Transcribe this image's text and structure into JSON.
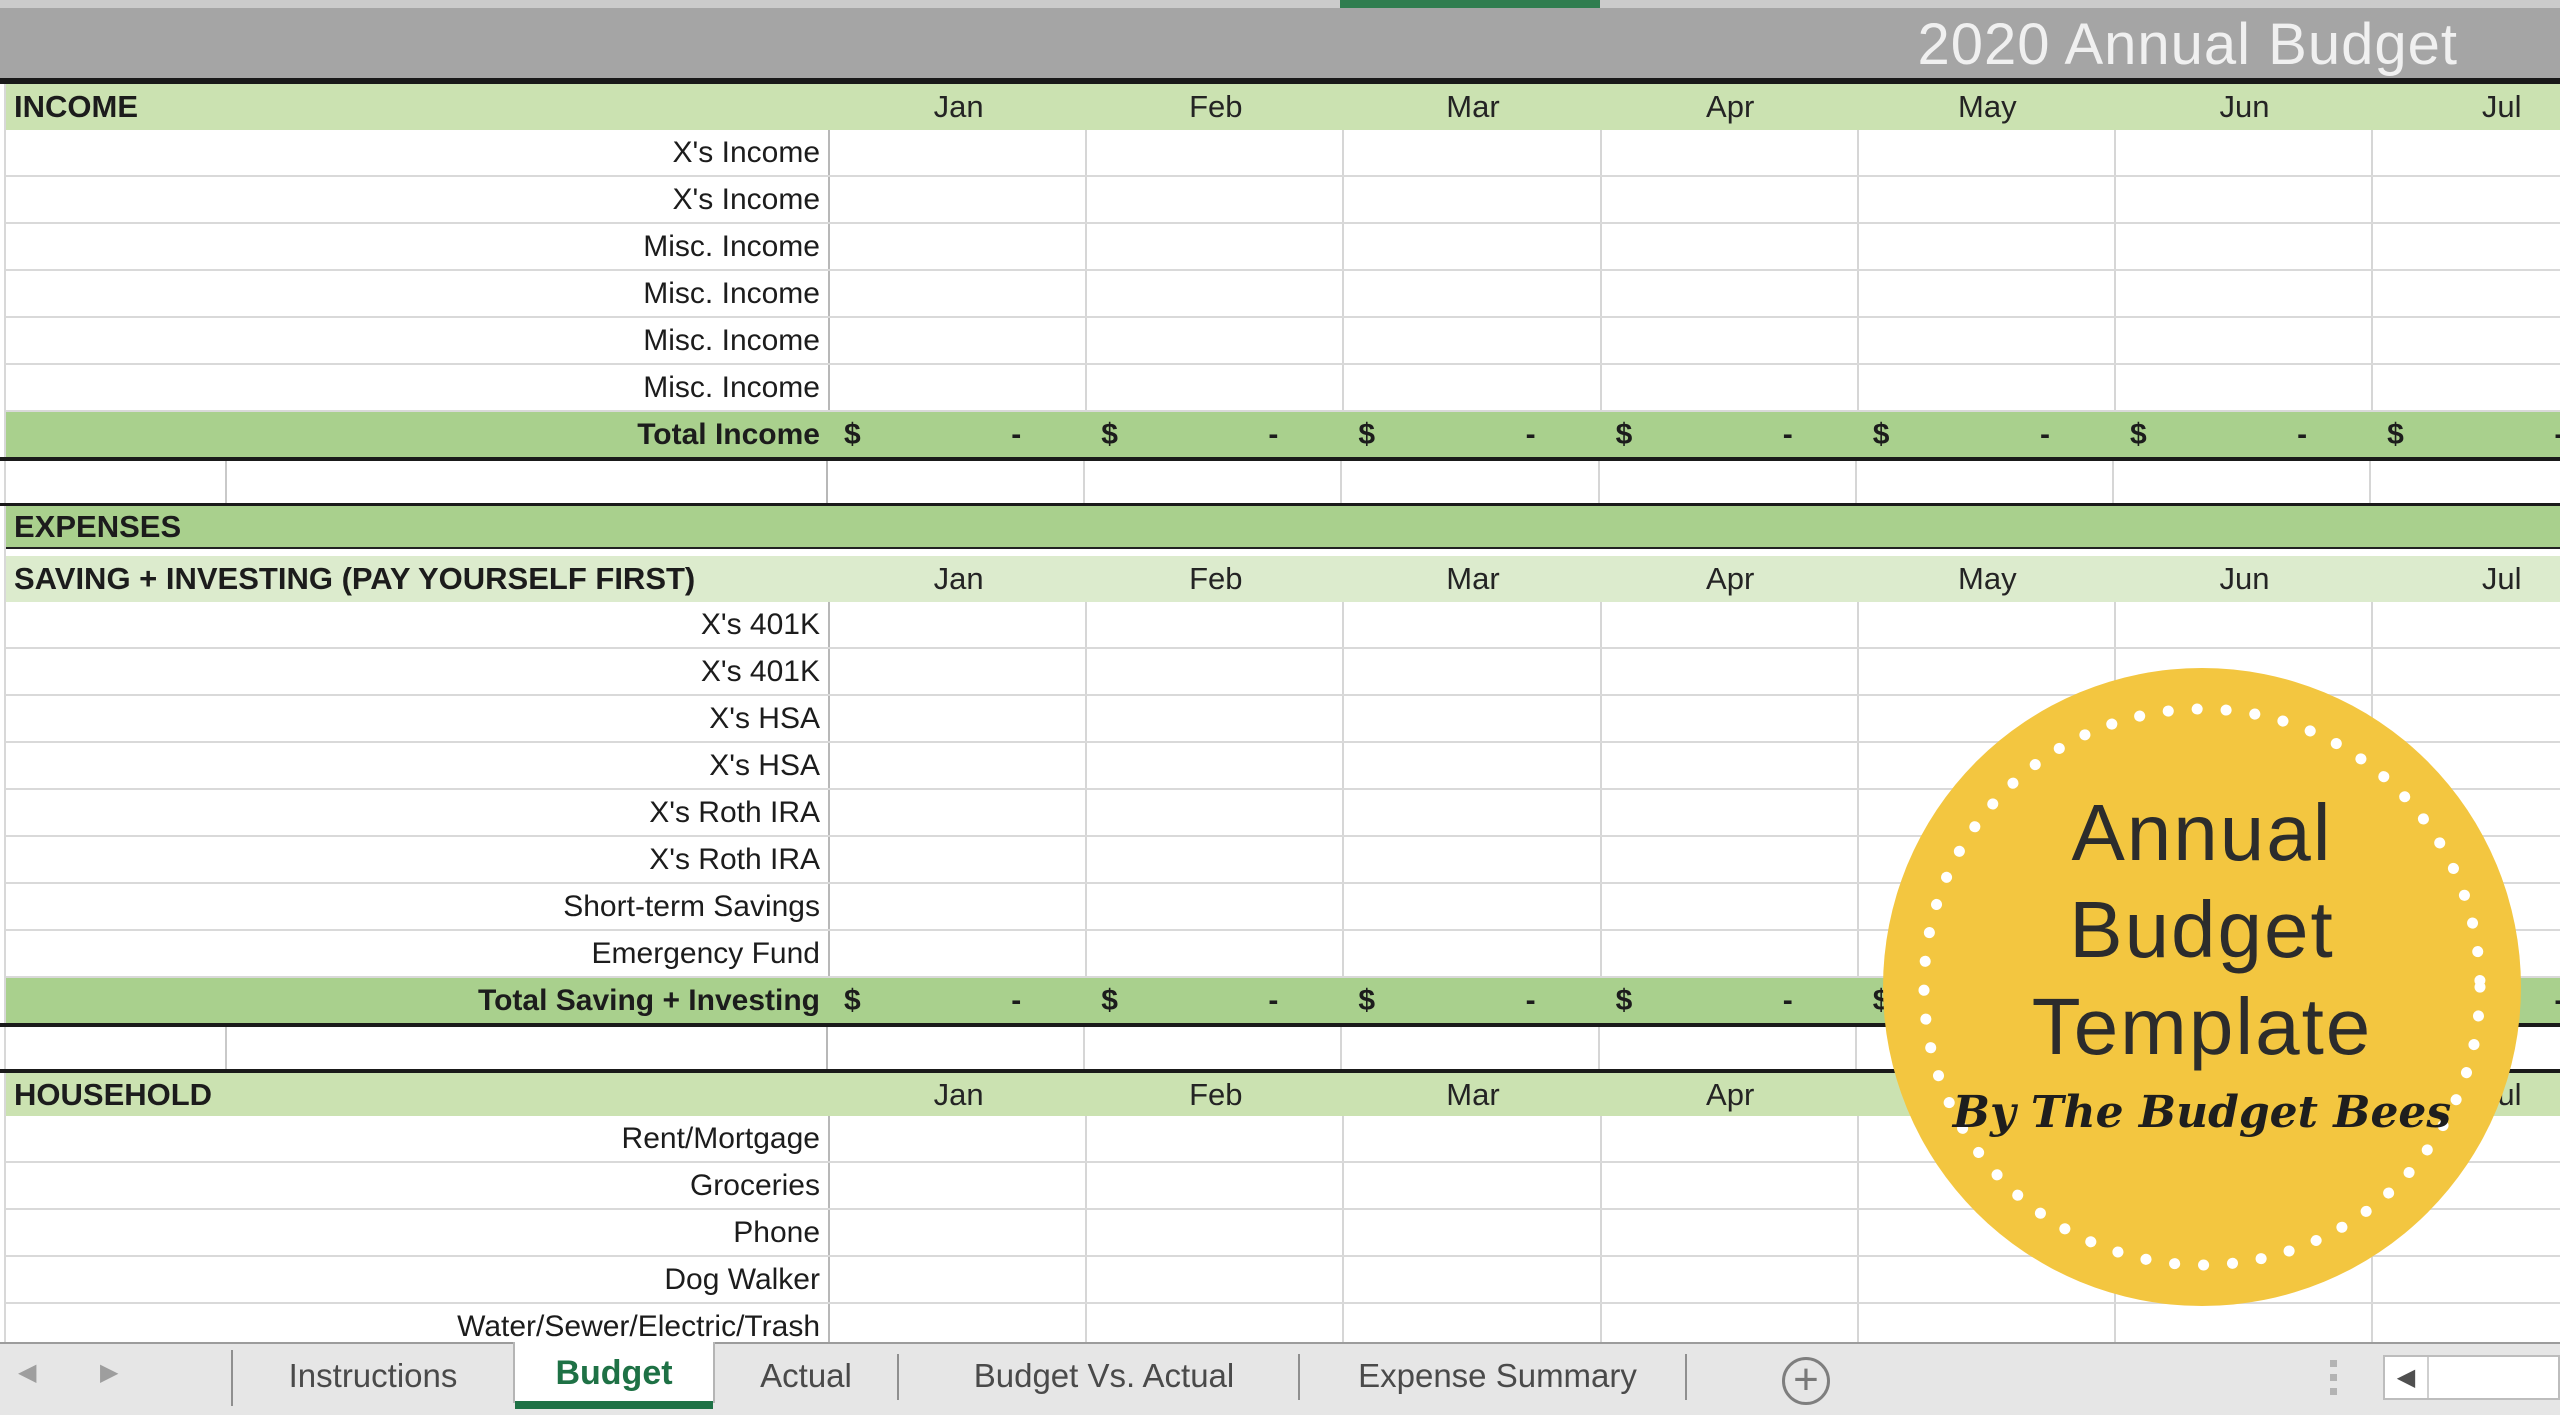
{
  "header": {
    "title": "2020 Annual Budget"
  },
  "months": [
    "Jan",
    "Feb",
    "Mar",
    "Apr",
    "May",
    "Jun",
    "Jul"
  ],
  "currency": {
    "symbol": "$",
    "dash": "-"
  },
  "sheet": {
    "rows": [
      {
        "kind": "section",
        "label": "INCOME",
        "tone": "light",
        "show_months": true
      },
      {
        "kind": "item",
        "label": "X's Income"
      },
      {
        "kind": "item",
        "label": "X's Income"
      },
      {
        "kind": "item",
        "label": "Misc. Income"
      },
      {
        "kind": "item",
        "label": "Misc. Income"
      },
      {
        "kind": "item",
        "label": "Misc. Income"
      },
      {
        "kind": "item",
        "label": "Misc. Income"
      },
      {
        "kind": "total",
        "label": "Total Income"
      },
      {
        "kind": "spacer"
      },
      {
        "kind": "band",
        "label": "EXPENSES"
      },
      {
        "kind": "gap"
      },
      {
        "kind": "section",
        "label": "SAVING + INVESTING (PAY YOURSELF FIRST)",
        "tone": "lighter",
        "show_months": true
      },
      {
        "kind": "item",
        "label": "X's 401K"
      },
      {
        "kind": "item",
        "label": "X's 401K"
      },
      {
        "kind": "item",
        "label": "X's HSA"
      },
      {
        "kind": "item",
        "label": "X's HSA"
      },
      {
        "kind": "item",
        "label": "X's Roth IRA"
      },
      {
        "kind": "item",
        "label": "X's Roth IRA"
      },
      {
        "kind": "item",
        "label": "Short-term Savings"
      },
      {
        "kind": "item",
        "label": "Emergency Fund"
      },
      {
        "kind": "total",
        "label": "Total Saving + Investing"
      },
      {
        "kind": "spacer"
      },
      {
        "kind": "section",
        "label": "HOUSEHOLD",
        "tone": "light",
        "show_months": true,
        "thick_top": true
      },
      {
        "kind": "item",
        "label": "Rent/Mortgage"
      },
      {
        "kind": "item",
        "label": "Groceries"
      },
      {
        "kind": "item",
        "label": "Phone"
      },
      {
        "kind": "item",
        "label": "Dog Walker"
      },
      {
        "kind": "item",
        "label": "Water/Sewer/Electric/Trash"
      }
    ]
  },
  "badge": {
    "line1": "Annual",
    "line2": "Budget",
    "line3": "Template",
    "byline": "By The Budget Bees"
  },
  "tabs": {
    "items": [
      {
        "label": "Instructions",
        "active": false
      },
      {
        "label": "Budget",
        "active": true
      },
      {
        "label": "Actual",
        "active": false
      },
      {
        "label": "Budget Vs. Actual",
        "active": false
      },
      {
        "label": "Expense Summary",
        "active": false
      }
    ],
    "add_label": "+"
  },
  "icons": {
    "prev_sheet": "◀",
    "next_sheet": "▶",
    "scroll_left": "◀"
  },
  "colors": {
    "excel_green": "#1e7145",
    "band_green": "#a9d08d",
    "header_green_light": "#cbe2b1",
    "header_green_lighter": "#dcebcd",
    "title_gray": "#a5a5a5",
    "badge_yellow": "#f3c640",
    "tabbar_gray": "#e6e6e6"
  }
}
